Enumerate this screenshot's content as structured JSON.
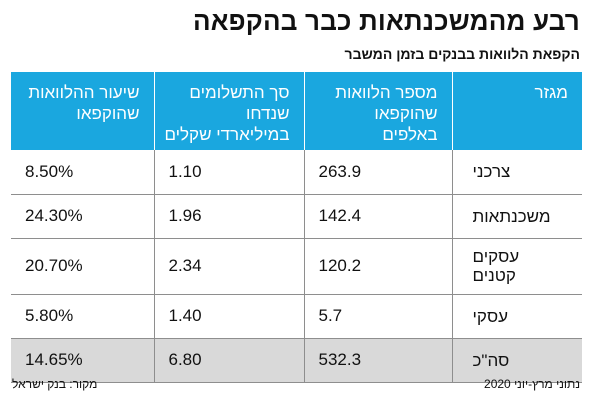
{
  "title": "רבע מהמשכנתאות כבר בהקפאה",
  "subtitle": "הקפאת הלוואות בבנקים בזמן המשבר",
  "chart_data": {
    "type": "table",
    "columns": [
      {
        "line1": "מגזר",
        "line2": "",
        "line3": ""
      },
      {
        "line1": "מספר הלוואות",
        "line2": "שהוקפאו",
        "line3": "באלפים"
      },
      {
        "line1": "סך התשלומים",
        "line2": "שנדחו",
        "line3": "במיליארדי שקלים"
      },
      {
        "line1": "שיעור ההלוואות",
        "line2": "שהוקפאו",
        "line3": ""
      }
    ],
    "rows": [
      {
        "sector": "צרכני",
        "loans": "263.9",
        "payments": "1.10",
        "rate": "8.50%"
      },
      {
        "sector": "משכנתאות",
        "loans": "142.4",
        "payments": "1.96",
        "rate": "24.30%"
      },
      {
        "sector": "עסקים קטנים",
        "loans": "120.2",
        "payments": "2.34",
        "rate": "20.70%"
      },
      {
        "sector": "עסקי",
        "loans": "5.7",
        "payments": "1.40",
        "rate": "5.80%"
      },
      {
        "sector": "סה\"כ",
        "loans": "532.3",
        "payments": "6.80",
        "rate": "14.65%"
      }
    ]
  },
  "footer": {
    "note": "נתוני מרץ-יוני 2020",
    "source": "מקור: בנק ישראל"
  },
  "colors": {
    "header_bg": "#1aa7df",
    "total_row_bg": "#d9d9d9"
  }
}
